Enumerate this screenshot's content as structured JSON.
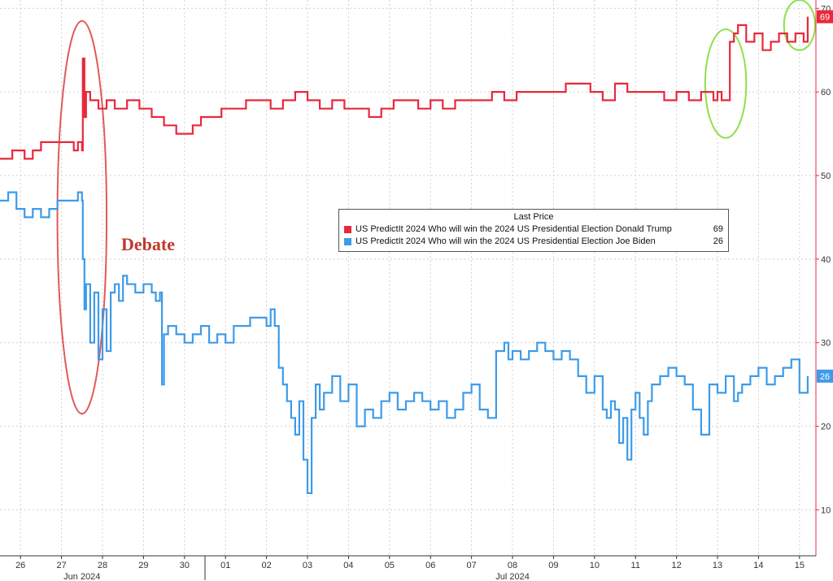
{
  "chart_data": {
    "type": "line",
    "legend": {
      "title": "Last Price",
      "placement": "middle-right",
      "entries": [
        {
          "label": "US PredictIt 2024 Who will win the 2024 US Presidential Election Donald Trump",
          "value": "69",
          "color": "#e8283c"
        },
        {
          "label": "US PredictIt 2024 Who will win the 2024 US Presidential Election Joe Biden",
          "value": "26",
          "color": "#3d9be9"
        }
      ]
    },
    "x_tick_labels": [
      "26",
      "27",
      "28",
      "29",
      "30",
      "01",
      "02",
      "03",
      "04",
      "05",
      "06",
      "07",
      "08",
      "09",
      "10",
      "11",
      "12",
      "13",
      "14",
      "15"
    ],
    "x_tick_day_index": [
      0,
      1,
      2,
      3,
      4,
      5,
      6,
      7,
      8,
      9,
      10,
      11,
      12,
      13,
      14,
      15,
      16,
      17,
      18,
      19
    ],
    "months": [
      {
        "label": "Jun 2024",
        "center_day": 1.5
      },
      {
        "label": "Jul 2024",
        "center_day": 12.0
      }
    ],
    "y_ticks": [
      10,
      20,
      30,
      40,
      50,
      60,
      70
    ],
    "ylim": [
      4.5,
      71
    ],
    "xlim": [
      -0.5,
      19.4
    ],
    "grid": true,
    "series": [
      {
        "name": "US PredictIt 2024 Who will win the 2024 US Presidential Election Donald Trump",
        "color": "#e8283c",
        "last_value": 69,
        "x": [
          -0.5,
          -0.2,
          0.1,
          0.3,
          0.5,
          0.7,
          0.9,
          1.1,
          1.3,
          1.4,
          1.5,
          1.52,
          1.56,
          1.6,
          1.7,
          1.9,
          2.1,
          2.3,
          2.6,
          2.9,
          3.2,
          3.5,
          3.8,
          4.0,
          4.2,
          4.4,
          4.6,
          4.9,
          5.2,
          5.5,
          5.8,
          6.1,
          6.4,
          6.7,
          7.0,
          7.3,
          7.6,
          7.9,
          8.2,
          8.5,
          8.8,
          9.1,
          9.4,
          9.7,
          10.0,
          10.3,
          10.6,
          10.9,
          11.2,
          11.5,
          11.8,
          12.1,
          12.4,
          12.7,
          13.0,
          13.3,
          13.6,
          13.9,
          14.2,
          14.5,
          14.8,
          15.1,
          15.4,
          15.7,
          16.0,
          16.3,
          16.6,
          16.9,
          17.0,
          17.1,
          17.2,
          17.3,
          17.4,
          17.5,
          17.7,
          17.9,
          18.1,
          18.3,
          18.5,
          18.7,
          18.9,
          19.1,
          19.2
        ],
        "y": [
          52,
          53,
          52,
          53,
          54,
          54,
          54,
          54,
          53,
          54,
          53,
          64,
          57,
          60,
          59,
          58,
          59,
          58,
          59,
          58,
          57,
          56,
          55,
          55,
          56,
          57,
          57,
          58,
          58,
          59,
          59,
          58,
          59,
          60,
          59,
          58,
          59,
          58,
          58,
          57,
          58,
          59,
          59,
          58,
          59,
          58,
          59,
          59,
          59,
          60,
          59,
          60,
          60,
          60,
          60,
          61,
          61,
          60,
          59,
          61,
          60,
          60,
          60,
          59,
          60,
          59,
          60,
          59,
          60,
          59,
          59,
          66,
          67,
          68,
          66,
          67,
          65,
          66,
          67,
          66,
          67,
          66,
          69
        ]
      },
      {
        "name": "US PredictIt 2024 Who will win the 2024 US Presidential Election Joe Biden",
        "color": "#3d9be9",
        "last_value": 26,
        "x": [
          -0.5,
          -0.3,
          -0.1,
          0.1,
          0.3,
          0.5,
          0.7,
          0.9,
          1.1,
          1.3,
          1.4,
          1.5,
          1.52,
          1.56,
          1.6,
          1.7,
          1.8,
          1.9,
          2.0,
          2.1,
          2.2,
          2.3,
          2.4,
          2.5,
          2.6,
          2.8,
          3.0,
          3.2,
          3.3,
          3.4,
          3.45,
          3.5,
          3.6,
          3.8,
          4.0,
          4.2,
          4.4,
          4.6,
          4.8,
          5.0,
          5.2,
          5.4,
          5.6,
          5.8,
          6.0,
          6.1,
          6.2,
          6.3,
          6.4,
          6.5,
          6.6,
          6.7,
          6.8,
          6.9,
          7.0,
          7.1,
          7.2,
          7.3,
          7.4,
          7.6,
          7.8,
          8.0,
          8.2,
          8.4,
          8.6,
          8.8,
          9.0,
          9.2,
          9.4,
          9.6,
          9.8,
          10.0,
          10.2,
          10.4,
          10.6,
          10.8,
          11.0,
          11.2,
          11.4,
          11.6,
          11.8,
          11.9,
          12.0,
          12.2,
          12.4,
          12.6,
          12.8,
          13.0,
          13.2,
          13.4,
          13.6,
          13.8,
          14.0,
          14.2,
          14.3,
          14.4,
          14.5,
          14.6,
          14.7,
          14.8,
          14.9,
          15.0,
          15.1,
          15.2,
          15.3,
          15.4,
          15.6,
          15.8,
          16.0,
          16.2,
          16.4,
          16.6,
          16.8,
          17.0,
          17.2,
          17.4,
          17.5,
          17.6,
          17.8,
          18.0,
          18.2,
          18.4,
          18.6,
          18.8,
          19.0,
          19.2
        ],
        "y": [
          47,
          48,
          46,
          45,
          46,
          45,
          46,
          47,
          47,
          47,
          48,
          47,
          40,
          34,
          37,
          30,
          36,
          28,
          34,
          29,
          36,
          37,
          35,
          38,
          37,
          36,
          37,
          36,
          35,
          36,
          25,
          31,
          32,
          31,
          30,
          31,
          32,
          30,
          31,
          30,
          32,
          32,
          33,
          33,
          32,
          34,
          32,
          27,
          25,
          23,
          21,
          19,
          23,
          16,
          12,
          21,
          25,
          22,
          24,
          26,
          23,
          25,
          20,
          22,
          21,
          23,
          24,
          22,
          23,
          24,
          23,
          22,
          23,
          21,
          22,
          24,
          25,
          22,
          21,
          29,
          30,
          28,
          29,
          28,
          29,
          30,
          29,
          28,
          29,
          28,
          26,
          24,
          26,
          22,
          21,
          23,
          22,
          18,
          21,
          16,
          22,
          24,
          21,
          19,
          23,
          25,
          26,
          27,
          26,
          25,
          22,
          19,
          25,
          24,
          26,
          23,
          24,
          25,
          26,
          27,
          25,
          26,
          27,
          28,
          24,
          26
        ]
      }
    ]
  },
  "annotations": {
    "debate_text": "Debate",
    "ellipses": [
      {
        "color": "#e05a5a",
        "center_day": 1.5,
        "center_value": 45,
        "half_width_days": 0.6,
        "half_height_value": 23.5
      },
      {
        "color": "#8fe04a",
        "center_day": 17.2,
        "center_value": 61,
        "half_width_days": 0.5,
        "half_height_value": 6.5
      },
      {
        "color": "#8fe04a",
        "center_day": 19.0,
        "center_value": 68,
        "half_width_days": 0.38,
        "half_height_value": 3.0
      }
    ]
  }
}
